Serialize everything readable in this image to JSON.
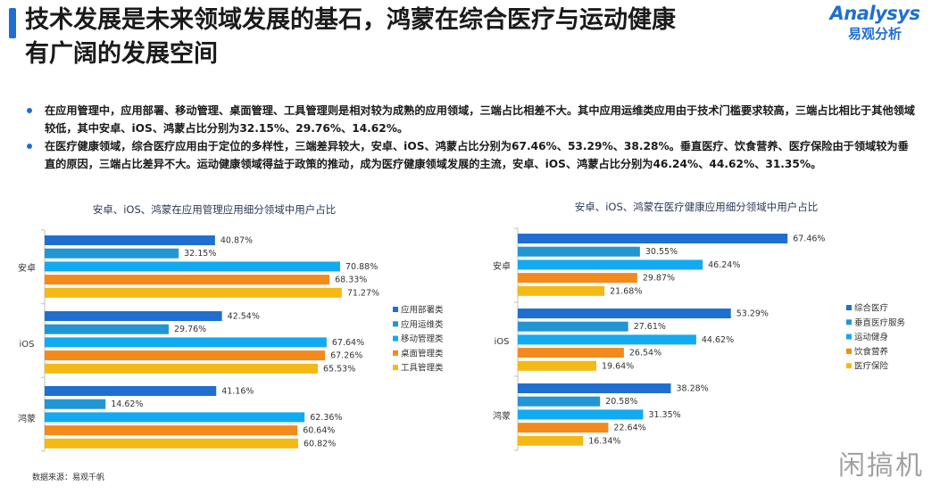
{
  "header": {
    "title_line1": "技术发展是未来领域发展的基石，鸿蒙在综合医疗与运动健康",
    "title_line2": "有广阔的发展空间",
    "logo_en": "Analysys",
    "logo_cn": "易观分析"
  },
  "bullets": [
    "在应用管理中，应用部署、移动管理、桌面管理、工具管理则是相对较为成熟的应用领域，三端占比相差不大。其中应用运维类应用由于技术门槛要求较高，三端占比相比于其他领域较低，其中安卓、iOS、鸿蒙占比分别为32.15%、29.76%、14.62%。",
    "在医疗健康领域，综合医疗应用由于定位的多样性，三端差异较大，安卓、iOS、鸿蒙占比分别为67.46%、53.29%、38.28%。垂直医疗、饮食营养、医疗保险由于领域较为垂直的原因，三端占比差异不大。运动健康领域得益于政策的推动，成为医疗健康领域发展的主流，安卓、iOS、鸿蒙占比分别为46.24%、44.62%、31.35%。"
  ],
  "colors": {
    "accent": "#1f6fd1",
    "series": [
      "#1f6fd1",
      "#2196d3",
      "#12aaf0",
      "#f28a1c",
      "#f5b915"
    ]
  },
  "chart_data": [
    {
      "type": "bar",
      "orientation": "horizontal",
      "title": "安卓、iOS、鸿蒙在应用管理应用细分领域中用户占比",
      "categories": [
        "安卓",
        "iOS",
        "鸿蒙"
      ],
      "series": [
        {
          "name": "应用部署类",
          "values": [
            40.87,
            42.54,
            41.16
          ],
          "labels": [
            "40.87%",
            "42.54%",
            "41.16%"
          ]
        },
        {
          "name": "应用运维类",
          "values": [
            32.15,
            29.76,
            14.62
          ],
          "labels": [
            "32.15%",
            "29.76%",
            "14.62%"
          ]
        },
        {
          "name": "移动管理类",
          "values": [
            70.88,
            67.64,
            62.36
          ],
          "labels": [
            "70.88%",
            "67.64%",
            "62.36%"
          ]
        },
        {
          "name": "桌面管理类",
          "values": [
            68.33,
            67.26,
            60.64
          ],
          "labels": [
            "68.33%",
            "67.26%",
            "60.64%"
          ]
        },
        {
          "name": "工具管理类",
          "values": [
            71.27,
            65.53,
            60.82
          ],
          "labels": [
            "71.27%",
            "65.53%",
            "60.82%"
          ]
        }
      ],
      "legend_position": "right",
      "grid": false
    },
    {
      "type": "bar",
      "orientation": "horizontal",
      "title": "安卓、iOS、鸿蒙在医疗健康应用细分领域中用户占比",
      "categories": [
        "安卓",
        "iOS",
        "鸿蒙"
      ],
      "series": [
        {
          "name": "综合医疗",
          "values": [
            67.46,
            53.29,
            38.28
          ],
          "labels": [
            "67.46%",
            "53.29%",
            "38.28%"
          ]
        },
        {
          "name": "垂直医疗服务",
          "values": [
            30.55,
            27.61,
            20.58
          ],
          "labels": [
            "30.55%",
            "27.61%",
            "20.58%"
          ]
        },
        {
          "name": "运动健身",
          "values": [
            46.24,
            44.62,
            31.35
          ],
          "labels": [
            "46.24%",
            "44.62%",
            "31.35%"
          ]
        },
        {
          "name": "饮食营养",
          "values": [
            29.87,
            26.54,
            22.64
          ],
          "labels": [
            "29.87%",
            "26.54%",
            "22.64%"
          ]
        },
        {
          "name": "医疗保险",
          "values": [
            21.68,
            19.64,
            16.34
          ],
          "labels": [
            "21.68%",
            "19.64%",
            "16.34%"
          ]
        }
      ],
      "legend_position": "right",
      "grid": false
    }
  ],
  "footer": {
    "source": "数据来源：易观千帆",
    "watermark": "闲搞机"
  }
}
